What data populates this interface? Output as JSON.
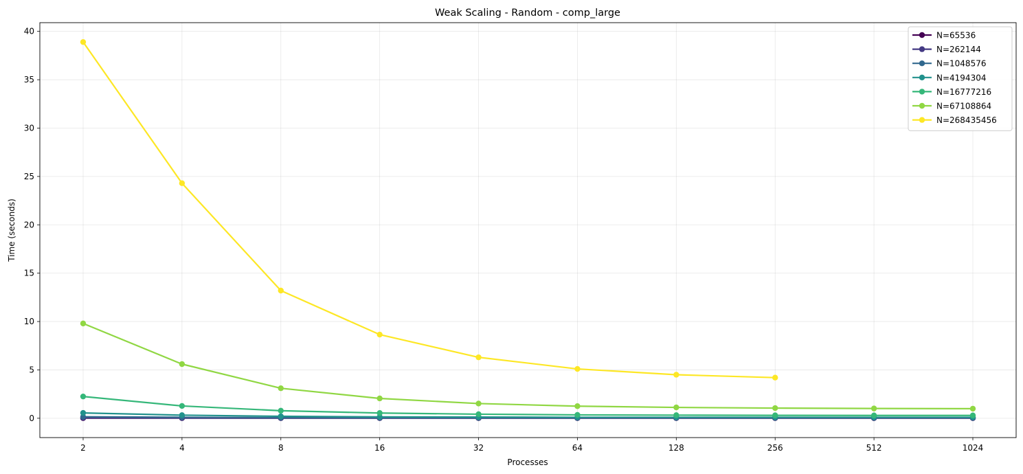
{
  "chart_data": {
    "type": "line",
    "title": "Weak Scaling - Random - comp_large",
    "xlabel": "Processes",
    "ylabel": "Time (seconds)",
    "x_scale": "log2",
    "x": [
      2,
      4,
      8,
      16,
      32,
      64,
      128,
      256,
      512,
      1024
    ],
    "x_tick_labels": [
      "2",
      "4",
      "8",
      "16",
      "32",
      "64",
      "128",
      "256",
      "512",
      "1024"
    ],
    "y_ticks": [
      0,
      5,
      10,
      15,
      20,
      25,
      30,
      35,
      40
    ],
    "y_tick_labels": [
      "0",
      "5",
      "10",
      "15",
      "20",
      "25",
      "30",
      "35",
      "40"
    ],
    "ylim": [
      -2,
      40.9
    ],
    "grid": true,
    "legend_position": "top-right",
    "series": [
      {
        "name": "N=65536",
        "color": "#440154",
        "values": [
          0.01,
          0.01,
          0.01,
          0.01,
          0.01,
          0.01,
          0.01,
          0.01,
          0.01,
          0.01
        ]
      },
      {
        "name": "N=262144",
        "color": "#443983",
        "values": [
          0.05,
          0.03,
          0.02,
          0.02,
          0.02,
          0.02,
          0.02,
          0.02,
          0.02,
          0.02
        ]
      },
      {
        "name": "N=1048576",
        "color": "#31688e",
        "values": [
          0.15,
          0.1,
          0.06,
          0.05,
          0.05,
          0.05,
          0.05,
          0.05,
          0.05,
          0.05
        ]
      },
      {
        "name": "N=4194304",
        "color": "#21918c",
        "values": [
          0.55,
          0.32,
          0.2,
          0.14,
          0.12,
          0.1,
          0.1,
          0.1,
          0.1,
          0.1
        ]
      },
      {
        "name": "N=16777216",
        "color": "#35b779",
        "values": [
          2.25,
          1.27,
          0.78,
          0.54,
          0.42,
          0.35,
          0.32,
          0.3,
          0.29,
          0.29
        ]
      },
      {
        "name": "N=67108864",
        "color": "#90d743",
        "values": [
          9.8,
          5.6,
          3.1,
          2.05,
          1.52,
          1.25,
          1.12,
          1.05,
          1.01,
          0.99
        ]
      },
      {
        "name": "N=268435456",
        "color": "#fde725",
        "values": [
          38.9,
          24.3,
          13.2,
          8.65,
          6.3,
          5.1,
          4.5,
          4.2,
          null,
          null
        ]
      }
    ]
  }
}
